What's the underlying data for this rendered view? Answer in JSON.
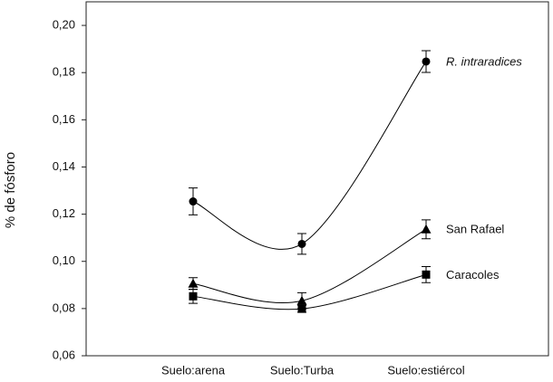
{
  "chart_data": {
    "type": "line",
    "y_label": "% de fósforo",
    "categories": [
      "Suelo:arena",
      "Suelo:Turba",
      "Suelo:estiércol"
    ],
    "series": [
      {
        "name": "R. intraradices",
        "color": "#000000",
        "marker": "circle",
        "italic": true,
        "values": [
          0.1254,
          0.1074,
          0.1847
        ],
        "errors": [
          0.0057,
          0.0044,
          0.0046
        ]
      },
      {
        "name": "San Rafael",
        "color": "#000000",
        "marker": "triangle",
        "values": [
          0.0906,
          0.0833,
          0.1136
        ],
        "errors": [
          0.0025,
          0.0034,
          0.004
        ]
      },
      {
        "name": "Caracoles",
        "color": "#000000",
        "marker": "square",
        "values": [
          0.0852,
          0.0799,
          0.0944
        ],
        "errors": [
          0.003,
          0.0015,
          0.0034
        ]
      }
    ],
    "ylim": [
      0.06,
      0.21
    ],
    "yticks": [
      {
        "value": 0.06,
        "label": "0,06"
      },
      {
        "value": 0.08,
        "label": "0,08"
      },
      {
        "value": 0.1,
        "label": "0,10"
      },
      {
        "value": 0.12,
        "label": "0,12"
      },
      {
        "value": 0.14,
        "label": "0,14"
      },
      {
        "value": 0.16,
        "label": "0,16"
      },
      {
        "value": 0.18,
        "label": "0,18"
      },
      {
        "value": 0.2,
        "label": "0,20"
      }
    ],
    "grid": false
  }
}
